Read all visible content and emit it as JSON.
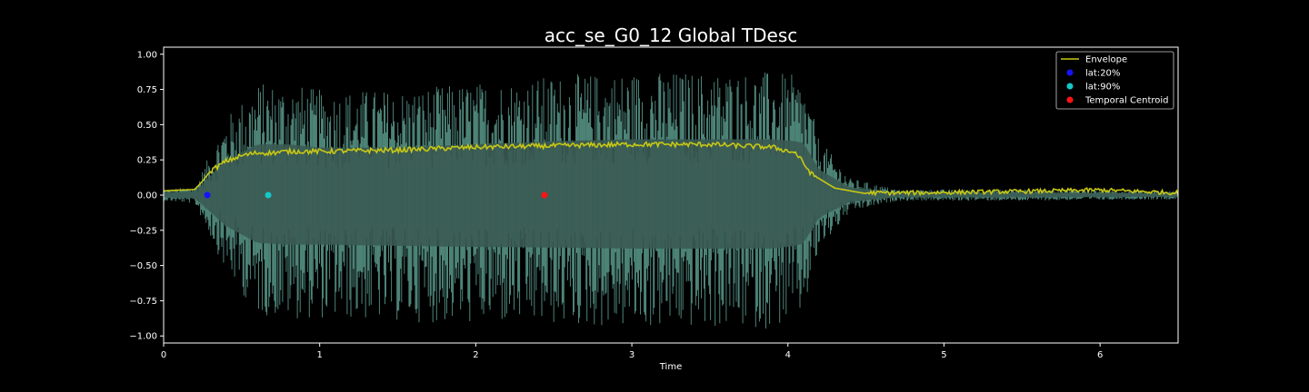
{
  "chart_data": {
    "type": "line",
    "title": "acc_se_G0_12 Global TDesc",
    "xlabel": "Time",
    "ylabel": "",
    "xlim": [
      0,
      6.5
    ],
    "ylim": [
      -1.05,
      1.05
    ],
    "x_ticks": [
      0,
      1,
      2,
      3,
      4,
      5,
      6
    ],
    "y_ticks": [
      1.0,
      0.75,
      0.5,
      0.25,
      0.0,
      -0.25,
      -0.5,
      -0.75,
      -1.0
    ],
    "x_tick_labels": [
      "0",
      "1",
      "2",
      "3",
      "4",
      "5",
      "6"
    ],
    "y_tick_labels": [
      "1.00",
      "0.75",
      "0.50",
      "0.25",
      "0.00",
      "−0.25",
      "−0.50",
      "−0.75",
      "−1.00"
    ],
    "grid": false,
    "legend_position": "top-right",
    "colors": {
      "background": "#000000",
      "axes": "#ffffff",
      "waveform": "#5a9a8c",
      "waveform_core": "#3a5a52",
      "envelope": "#c8c814",
      "lat20": "#1414ff",
      "lat90": "#14c8c8",
      "centroid": "#ff1414"
    },
    "waveform_amplitude": {
      "x": [
        0.0,
        0.2,
        0.3,
        0.4,
        0.6,
        0.8,
        1.0,
        1.5,
        2.0,
        2.5,
        3.0,
        3.5,
        3.9,
        4.05,
        4.1,
        4.2,
        4.4,
        4.7,
        5.5,
        6.5
      ],
      "upper": [
        0.04,
        0.06,
        0.3,
        0.55,
        0.8,
        0.8,
        0.75,
        0.75,
        0.8,
        0.85,
        0.88,
        0.88,
        0.88,
        0.85,
        0.82,
        0.4,
        0.12,
        0.04,
        0.04,
        0.03
      ],
      "lower": [
        -0.04,
        -0.06,
        -0.3,
        -0.55,
        -0.85,
        -0.88,
        -0.88,
        -0.9,
        -0.92,
        -0.93,
        -0.95,
        -0.95,
        -0.95,
        -0.9,
        -0.85,
        -0.4,
        -0.12,
        -0.04,
        -0.04,
        -0.03
      ]
    },
    "series": [
      {
        "name": "Envelope",
        "kind": "line",
        "x": [
          0.0,
          0.2,
          0.25,
          0.3,
          0.4,
          0.5,
          0.6,
          0.7,
          0.8,
          1.0,
          1.5,
          2.0,
          2.5,
          3.0,
          3.5,
          3.9,
          4.05,
          4.15,
          4.3,
          4.5,
          4.8,
          5.5,
          6.0,
          6.5
        ],
        "y": [
          0.03,
          0.04,
          0.1,
          0.17,
          0.24,
          0.28,
          0.3,
          0.3,
          0.31,
          0.31,
          0.32,
          0.34,
          0.35,
          0.36,
          0.36,
          0.34,
          0.3,
          0.15,
          0.05,
          0.01,
          0.01,
          0.02,
          0.03,
          0.01
        ]
      },
      {
        "name": "lat:20%",
        "kind": "point",
        "x": [
          0.28
        ],
        "y": [
          0.0
        ]
      },
      {
        "name": "lat:90%",
        "kind": "point",
        "x": [
          0.67
        ],
        "y": [
          0.0
        ]
      },
      {
        "name": "Temporal Centroid",
        "kind": "point",
        "x": [
          2.44
        ],
        "y": [
          0.0
        ]
      }
    ]
  }
}
